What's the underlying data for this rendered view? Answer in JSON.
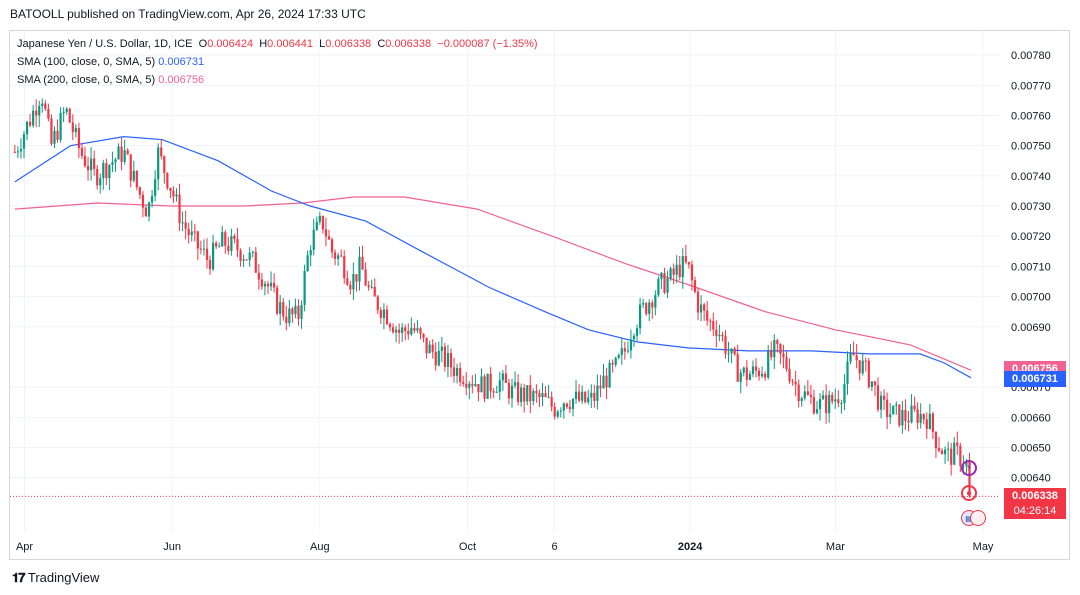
{
  "header": {
    "publisher_line": "BATOOLL published on TradingView.com, Apr 26, 2024 17:33 UTC"
  },
  "legend": {
    "symbol": "Japanese Yen / U.S. Dollar, 1D, ICE",
    "o_label": "O",
    "o": "0.006424",
    "h_label": "H",
    "h": "0.006441",
    "l_label": "L",
    "l": "0.006338",
    "c_label": "C",
    "c": "0.006338",
    "change": "−0.000087 (−1.35%)",
    "sma100_label": "SMA (100, close, 0, SMA, 5)",
    "sma100_value": "0.006731",
    "sma200_label": "SMA (200, close, 0, SMA, 5)",
    "sma200_value": "0.006756"
  },
  "price_tags": {
    "sma200": "0.006756",
    "sma100": "0.006731",
    "last": "0.006338",
    "countdown": "04:26:14"
  },
  "footer": {
    "brand": "TradingView"
  },
  "colors": {
    "up": "#089981",
    "down": "#f23645",
    "sma100": "#2962ff",
    "sma200": "#f06292"
  },
  "icons": [
    "lightning-icon",
    "record-icon",
    "us-flag-icon"
  ],
  "chart_data": {
    "type": "candlestick",
    "x_ticks": [
      "Apr",
      "Jun",
      "Aug",
      "Oct",
      "6",
      "2024",
      "Mar",
      "May"
    ],
    "y_ticks": [
      "0.00640",
      "0.00650",
      "0.00660",
      "0.00670",
      "0.00690",
      "0.00700",
      "0.00710",
      "0.00720",
      "0.00730",
      "0.00740",
      "0.00750",
      "0.00760",
      "0.00770",
      "0.00780"
    ],
    "ylim": [
      0.00622,
      0.00788
    ],
    "current_price": 0.006338,
    "close_path": [
      [
        "2023-03-28",
        0.00748
      ],
      [
        "2023-04-04",
        0.0076
      ],
      [
        "2023-04-08",
        0.00768
      ],
      [
        "2023-04-12",
        0.0075
      ],
      [
        "2023-04-18",
        0.00762
      ],
      [
        "2023-04-24",
        0.00748
      ],
      [
        "2023-04-30",
        0.0074
      ],
      [
        "2023-05-06",
        0.00744
      ],
      [
        "2023-05-12",
        0.00748
      ],
      [
        "2023-05-18",
        0.00735
      ],
      [
        "2023-05-22",
        0.00728
      ],
      [
        "2023-05-26",
        0.00748
      ],
      [
        "2023-06-01",
        0.00735
      ],
      [
        "2023-06-05",
        0.00725
      ],
      [
        "2023-06-10",
        0.00718
      ],
      [
        "2023-06-16",
        0.00712
      ],
      [
        "2023-06-22",
        0.00718
      ],
      [
        "2023-06-28",
        0.00716
      ],
      [
        "2023-07-04",
        0.00712
      ],
      [
        "2023-07-09",
        0.00706
      ],
      [
        "2023-07-14",
        0.00698
      ],
      [
        "2023-07-18",
        0.00694
      ],
      [
        "2023-07-23",
        0.00693
      ],
      [
        "2023-07-28",
        0.00718
      ],
      [
        "2023-08-02",
        0.00725
      ],
      [
        "2023-08-06",
        0.00715
      ],
      [
        "2023-08-10",
        0.00712
      ],
      [
        "2023-08-14",
        0.00705
      ],
      [
        "2023-08-18",
        0.0071
      ],
      [
        "2023-08-22",
        0.007
      ],
      [
        "2023-08-28",
        0.00695
      ],
      [
        "2023-09-03",
        0.00688
      ],
      [
        "2023-09-08",
        0.0069
      ],
      [
        "2023-09-14",
        0.00683
      ],
      [
        "2023-09-20",
        0.0068
      ],
      [
        "2023-09-26",
        0.00676
      ],
      [
        "2023-10-02",
        0.00673
      ],
      [
        "2023-10-08",
        0.0067
      ],
      [
        "2023-10-14",
        0.00672
      ],
      [
        "2023-10-20",
        0.00668
      ],
      [
        "2023-10-26",
        0.00667
      ],
      [
        "2023-11-01",
        0.00666
      ],
      [
        "2023-11-06",
        0.00663
      ],
      [
        "2023-11-10",
        0.00666
      ],
      [
        "2023-11-14",
        0.00666
      ],
      [
        "2023-11-18",
        0.00665
      ],
      [
        "2023-11-22",
        0.00666
      ],
      [
        "2023-11-26",
        0.00672
      ],
      [
        "2023-12-01",
        0.00676
      ],
      [
        "2023-12-05",
        0.00682
      ],
      [
        "2023-12-08",
        0.0069
      ],
      [
        "2023-12-12",
        0.00695
      ],
      [
        "2023-12-16",
        0.007
      ],
      [
        "2023-12-20",
        0.00704
      ],
      [
        "2023-12-24",
        0.00706
      ],
      [
        "2023-12-28",
        0.0071
      ],
      [
        "2023-12-31",
        0.0071
      ],
      [
        "2024-01-04",
        0.00698
      ],
      [
        "2024-01-08",
        0.00692
      ],
      [
        "2024-01-12",
        0.0069
      ],
      [
        "2024-01-16",
        0.00683
      ],
      [
        "2024-01-20",
        0.00676
      ],
      [
        "2024-01-24",
        0.00674
      ],
      [
        "2024-01-28",
        0.00675
      ],
      [
        "2024-02-01",
        0.00677
      ],
      [
        "2024-02-05",
        0.00682
      ],
      [
        "2024-02-10",
        0.00677
      ],
      [
        "2024-02-14",
        0.0067
      ],
      [
        "2024-02-19",
        0.00666
      ],
      [
        "2024-02-24",
        0.00664
      ],
      [
        "2024-02-28",
        0.00665
      ],
      [
        "2024-03-04",
        0.00669
      ],
      [
        "2024-03-08",
        0.00681
      ],
      [
        "2024-03-12",
        0.00677
      ],
      [
        "2024-03-16",
        0.00672
      ],
      [
        "2024-03-20",
        0.00663
      ],
      [
        "2024-03-25",
        0.00661
      ],
      [
        "2024-03-30",
        0.0066
      ],
      [
        "2024-04-04",
        0.00661
      ],
      [
        "2024-04-08",
        0.0066
      ],
      [
        "2024-04-12",
        0.00652
      ],
      [
        "2024-04-16",
        0.00647
      ],
      [
        "2024-04-20",
        0.00648
      ],
      [
        "2024-04-24",
        0.00645
      ],
      [
        "2024-04-26",
        0.006338
      ]
    ],
    "sma100": [
      [
        "2023-03-28",
        0.00738
      ],
      [
        "2023-04-20",
        0.0075
      ],
      [
        "2023-05-12",
        0.00753
      ],
      [
        "2023-05-28",
        0.00752
      ],
      [
        "2023-06-20",
        0.00745
      ],
      [
        "2023-07-12",
        0.00735
      ],
      [
        "2023-07-28",
        0.0073
      ],
      [
        "2023-08-20",
        0.00725
      ],
      [
        "2023-09-12",
        0.00715
      ],
      [
        "2023-10-10",
        0.00703
      ],
      [
        "2023-11-02",
        0.00695
      ],
      [
        "2023-11-20",
        0.00689
      ],
      [
        "2023-12-10",
        0.00685
      ],
      [
        "2023-12-31",
        0.00683
      ],
      [
        "2024-01-25",
        0.00682
      ],
      [
        "2024-02-20",
        0.00682
      ],
      [
        "2024-03-15",
        0.00681
      ],
      [
        "2024-04-05",
        0.00681
      ],
      [
        "2024-04-15",
        0.00678
      ],
      [
        "2024-04-26",
        0.006731
      ]
    ],
    "sma200": [
      [
        "2023-03-28",
        0.00729
      ],
      [
        "2023-05-01",
        0.00731
      ],
      [
        "2023-06-01",
        0.0073
      ],
      [
        "2023-07-01",
        0.0073
      ],
      [
        "2023-07-25",
        0.00731
      ],
      [
        "2023-08-15",
        0.00733
      ],
      [
        "2023-09-05",
        0.00733
      ],
      [
        "2023-10-05",
        0.00729
      ],
      [
        "2023-11-05",
        0.0072
      ],
      [
        "2023-12-05",
        0.00711
      ],
      [
        "2023-12-31",
        0.00704
      ],
      [
        "2024-02-01",
        0.00695
      ],
      [
        "2024-03-01",
        0.00689
      ],
      [
        "2024-04-01",
        0.00684
      ],
      [
        "2024-04-26",
        0.006756
      ]
    ]
  }
}
